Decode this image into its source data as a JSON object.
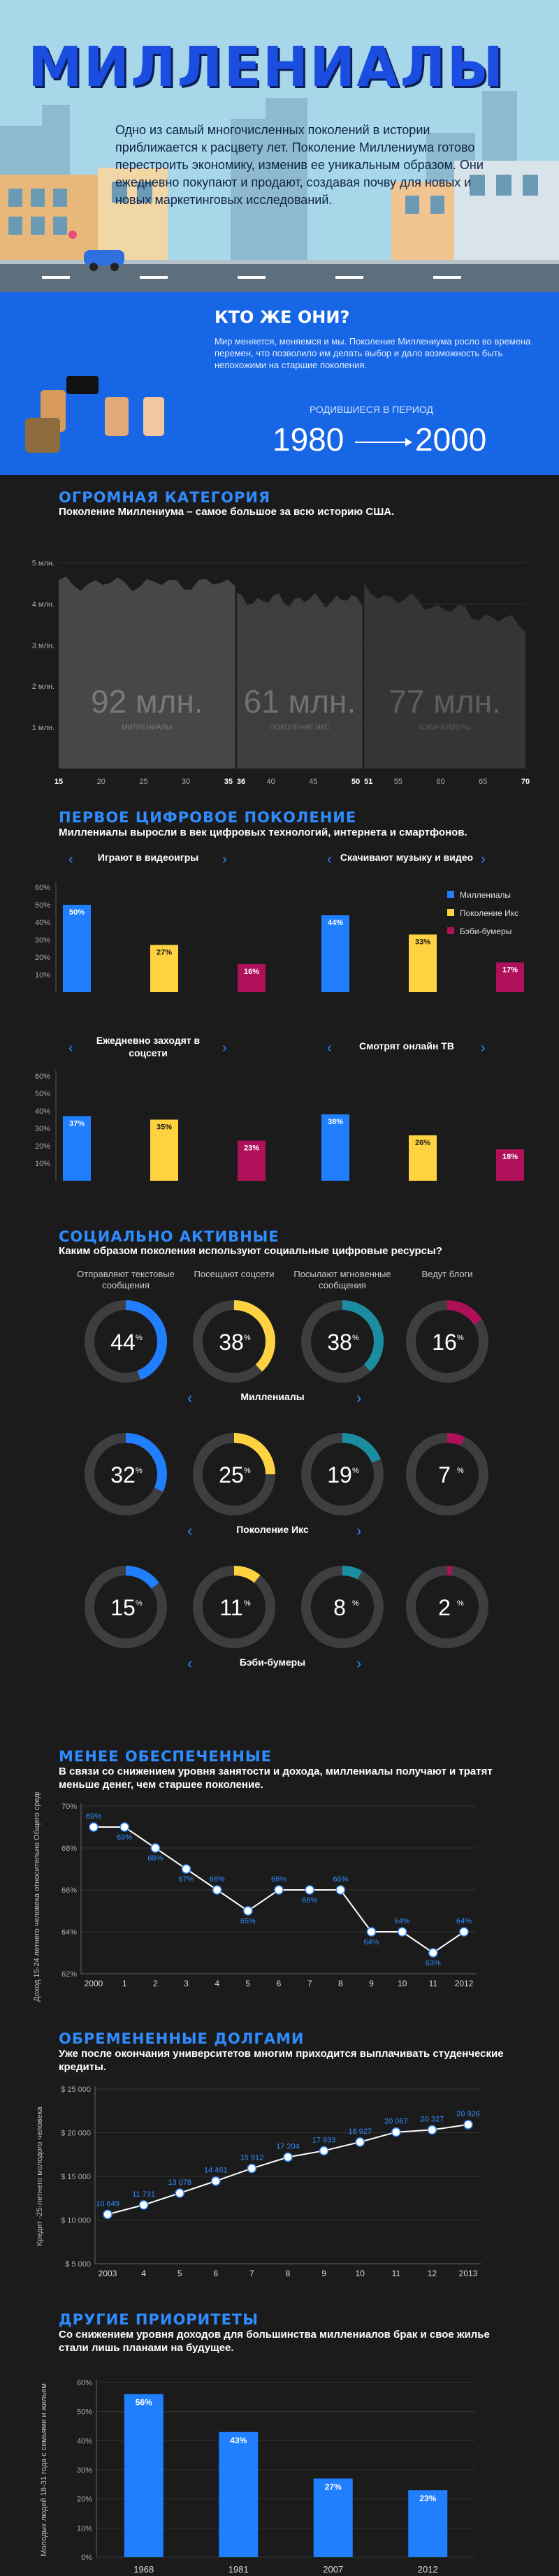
{
  "hero": {
    "title": "МИЛЛЕНИАЛЫ",
    "intro": "Одно из самый многочисленных поколений в истории приближается к расцвету лет. Поколение Миллениума готово перестроить экономику, изменив ее уникальным образом. Они ежедневно покупают и продают, создавая почву для новых и новых маркетинговых исследований."
  },
  "who": {
    "title": "КТО ЖЕ ОНИ?",
    "text": "Мир меняется, меняемся и мы. Поколение Миллениума росло во времена перемен, что позволило им делать выбор и дало возможность быть непохожими на старшие поколения.",
    "born_label": "РОДИВШИЕСЯ В ПЕРИОД",
    "year_from": "1980",
    "year_to": "2000"
  },
  "population": {
    "title": "ОГРОМНАЯ КАТЕГОРИЯ",
    "subtitle": "Поколение Миллениума – самое большое за всю историю США.",
    "groups": [
      {
        "value": "92 млн.",
        "label": "МИЛЛЕНИАЛЫ"
      },
      {
        "value": "61 млн.",
        "label": "ПОКОЛЕНИЕ ИКС"
      },
      {
        "value": "77 млн.",
        "label": "БЭБИ-БУМЕРЫ"
      }
    ]
  },
  "digital": {
    "title": "ПЕРВОЕ ЦИФРОВОЕ ПОКОЛЕНИЕ",
    "subtitle": "Миллениалы выросли в век цифровых технологий, интернета и смартфонов.",
    "legend": [
      "Миллениалы",
      "Поколение Икс",
      "Бэби-бумеры"
    ]
  },
  "social": {
    "title": "СОЦИАЛЬНО АКТИВНЫЕ",
    "subtitle": "Каким образом поколения используют социальные цифровые ресурсы?",
    "column_labels": [
      "Отправляют текстовые сообщения",
      "Посещают соцсети",
      "Посылают мгновенные сообщения",
      "Ведут блоги"
    ],
    "groups": [
      {
        "name": "Миллениалы",
        "values": [
          44,
          38,
          38,
          16
        ]
      },
      {
        "name": "Поколение Икс",
        "values": [
          32,
          25,
          19,
          7
        ]
      },
      {
        "name": "Бэби-бумеры",
        "values": [
          15,
          11,
          8,
          2
        ]
      }
    ]
  },
  "income": {
    "title": "МЕНЕЕ ОБЕСПЕЧЕННЫЕ",
    "subtitle": "В связи со снижением уровня занятости и дохода, миллениалы получают и тратят меньше денег, чем старшее поколение."
  },
  "debt": {
    "title": "ОБРЕМЕНЕННЫЕ ДОЛГАМИ",
    "subtitle": "Уже после окончания университетов многим приходится выплачивать студенческие кредиты."
  },
  "priorities": {
    "title": "ДРУГИЕ ПРИОРИТЕТЫ",
    "subtitle": "Со снижением уровня доходов для большинства миллениалов брак и свое жилье стали лишь планами на будущее."
  },
  "colors": {
    "millennials": "#1f7fff",
    "genx": "#ffd23f",
    "boomers": "#b0105a",
    "accent": "#2f8cff"
  },
  "chart_data": [
    {
      "id": "population",
      "type": "area",
      "title": "ОГРОМНАЯ КАТЕГОРИЯ",
      "ylabel": "",
      "yticks": [
        "1 млн.",
        "2 млн.",
        "3 млн.",
        "4 млн.",
        "5 млн."
      ],
      "ylim": [
        0,
        5
      ],
      "xticks": [
        15,
        20,
        25,
        30,
        35,
        36,
        40,
        45,
        50,
        51,
        55,
        60,
        65,
        70
      ],
      "xlim": [
        15,
        70
      ],
      "series": [
        {
          "name": "МИЛЛЕНИАЛЫ",
          "x_range": [
            15,
            35
          ],
          "level": 4.5,
          "total": "92 млн."
        },
        {
          "name": "ПОКОЛЕНИЕ ИКС",
          "x_range": [
            36,
            50
          ],
          "level": 4.1,
          "total": "61 млн."
        },
        {
          "name": "БЭБИ-БУМЕРЫ",
          "x_range": [
            51,
            70
          ],
          "level": 4.3,
          "total": "77 млн."
        }
      ]
    },
    {
      "id": "digital-1",
      "type": "bar",
      "panels": [
        {
          "title": "Играют в видеоигры",
          "values": [
            50,
            27,
            16
          ]
        },
        {
          "title": "Скачивают музыку и видео",
          "values": [
            44,
            33,
            17
          ]
        }
      ],
      "categories": [
        "Миллениалы",
        "Поколение Икс",
        "Бэби-бумеры"
      ],
      "yticks": [
        "10%",
        "20%",
        "30%",
        "40%",
        "50%",
        "60%"
      ],
      "ylim": [
        0,
        60
      ]
    },
    {
      "id": "digital-2",
      "type": "bar",
      "panels": [
        {
          "title": "Ежедневно заходят в соцсети",
          "values": [
            37,
            35,
            23
          ]
        },
        {
          "title": "Смотрят онлайн ТВ",
          "values": [
            38,
            26,
            18
          ]
        }
      ],
      "categories": [
        "Миллениалы",
        "Поколение Икс",
        "Бэби-бумеры"
      ],
      "yticks": [
        "10%",
        "20%",
        "30%",
        "40%",
        "50%",
        "60%"
      ],
      "ylim": [
        0,
        60
      ]
    },
    {
      "id": "income",
      "type": "line",
      "ylabel": "Доход 15-24 летнего человека относительно Общего среднего",
      "x": [
        "2000",
        "1",
        "2",
        "3",
        "4",
        "5",
        "6",
        "7",
        "8",
        "9",
        "10",
        "11",
        "2012"
      ],
      "values": [
        69,
        69,
        68,
        67,
        66,
        65,
        66,
        66,
        66,
        64,
        64,
        63,
        64
      ],
      "ylim": [
        62,
        70
      ],
      "yticks": [
        "62%",
        "64%",
        "66%",
        "68%",
        "70%"
      ]
    },
    {
      "id": "debt",
      "type": "line",
      "ylabel": "Кредит -25-летнего молодого человека",
      "x": [
        "2003",
        "4",
        "5",
        "6",
        "7",
        "8",
        "9",
        "10",
        "11",
        "12",
        "2013"
      ],
      "values": [
        10649,
        11731,
        13078,
        14461,
        15912,
        17204,
        17933,
        18927,
        20067,
        20327,
        20926
      ],
      "labels": [
        "10 649",
        "11 731",
        "13 078",
        "14 461",
        "15 912",
        "17 204",
        "17 933",
        "18 927",
        "20 067",
        "20 327",
        "20 926"
      ],
      "ylim": [
        5000,
        25000
      ],
      "yticks": [
        "$ 5 000",
        "$ 10 000",
        "$ 15 000",
        "$ 20 000",
        "$ 25 000"
      ]
    },
    {
      "id": "priorities",
      "type": "bar",
      "ylabel": "Молодых людей 18-31 года с семьями и жильем",
      "categories": [
        "1968",
        "1981",
        "2007",
        "2012"
      ],
      "values": [
        56,
        43,
        27,
        23
      ],
      "ylim": [
        0,
        60
      ],
      "yticks": [
        "0%",
        "10%",
        "20%",
        "30%",
        "40%",
        "50%",
        "60%"
      ]
    }
  ]
}
